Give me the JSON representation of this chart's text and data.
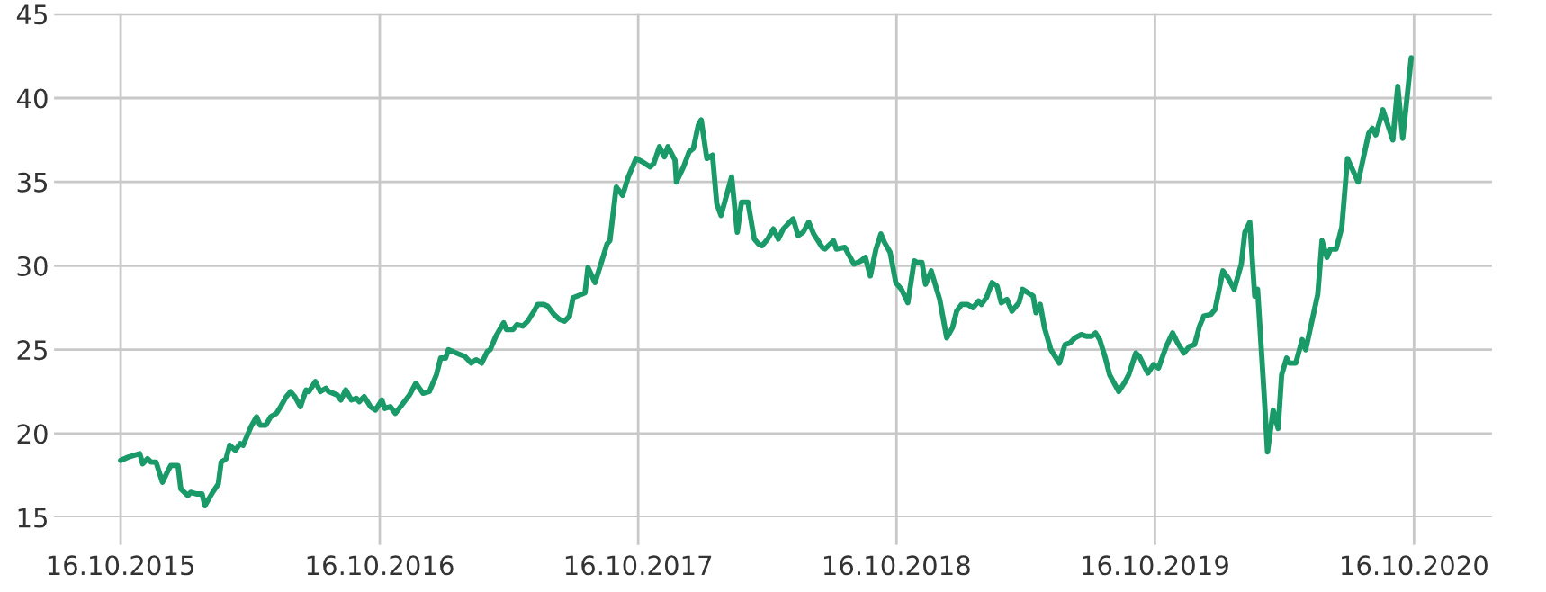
{
  "chart_data": {
    "type": "line",
    "x": [
      "2015-10-16",
      "2015-10-27",
      "2015-11-12",
      "2015-11-16",
      "2015-11-23",
      "2015-11-28",
      "2015-12-05",
      "2015-12-14",
      "2015-12-22",
      "2015-12-26",
      "2016-01-05",
      "2016-01-09",
      "2016-01-19",
      "2016-01-23",
      "2016-01-31",
      "2016-02-08",
      "2016-02-12",
      "2016-02-23",
      "2016-03-02",
      "2016-03-06",
      "2016-03-13",
      "2016-03-18",
      "2016-03-26",
      "2016-04-02",
      "2016-04-06",
      "2016-04-17",
      "2016-04-25",
      "2016-04-30",
      "2016-05-08",
      "2016-05-15",
      "2016-05-23",
      "2016-05-29",
      "2016-06-06",
      "2016-06-12",
      "2016-06-18",
      "2016-06-26",
      "2016-07-04",
      "2016-07-08",
      "2016-07-17",
      "2016-07-24",
      "2016-08-01",
      "2016-08-05",
      "2016-08-17",
      "2016-08-22",
      "2016-08-29",
      "2016-09-06",
      "2016-09-13",
      "2016-09-17",
      "2016-09-24",
      "2016-10-03",
      "2016-10-10",
      "2016-10-19",
      "2016-10-23",
      "2016-10-31",
      "2016-11-07",
      "2016-11-16",
      "2016-11-27",
      "2016-12-06",
      "2016-12-16",
      "2016-12-25",
      "2017-01-04",
      "2017-01-10",
      "2017-01-17",
      "2017-01-21",
      "2017-02-01",
      "2017-02-13",
      "2017-02-22",
      "2017-03-01",
      "2017-03-09",
      "2017-03-17",
      "2017-03-21",
      "2017-03-29",
      "2017-04-09",
      "2017-04-13",
      "2017-04-22",
      "2017-04-28",
      "2017-05-06",
      "2017-05-13",
      "2017-05-22",
      "2017-05-27",
      "2017-06-04",
      "2017-06-10",
      "2017-06-19",
      "2017-06-27",
      "2017-07-04",
      "2017-07-11",
      "2017-07-16",
      "2017-07-28",
      "2017-08-02",
      "2017-08-06",
      "2017-08-16",
      "2017-08-25",
      "2017-09-02",
      "2017-09-06",
      "2017-09-15",
      "2017-09-24",
      "2017-10-02",
      "2017-10-13",
      "2017-10-22",
      "2017-11-02",
      "2017-11-07",
      "2017-11-15",
      "2017-11-22",
      "2017-11-27",
      "2017-12-07",
      "2017-12-09",
      "2017-12-19",
      "2017-12-27",
      "2018-01-02",
      "2018-01-09",
      "2018-01-13",
      "2018-01-21",
      "2018-01-29",
      "2018-02-04",
      "2018-02-10",
      "2018-02-25",
      "2018-03-05",
      "2018-03-11",
      "2018-03-20",
      "2018-03-29",
      "2018-04-04",
      "2018-04-09",
      "2018-04-17",
      "2018-04-25",
      "2018-05-02",
      "2018-05-09",
      "2018-05-18",
      "2018-05-23",
      "2018-05-30",
      "2018-06-06",
      "2018-06-14",
      "2018-06-21",
      "2018-07-03",
      "2018-07-07",
      "2018-07-19",
      "2018-07-23",
      "2018-08-04",
      "2018-08-09",
      "2018-08-17",
      "2018-08-27",
      "2018-09-02",
      "2018-09-09",
      "2018-09-17",
      "2018-09-24",
      "2018-09-29",
      "2018-10-07",
      "2018-10-15",
      "2018-10-23",
      "2018-11-01",
      "2018-11-10",
      "2018-11-14",
      "2018-11-21",
      "2018-11-26",
      "2018-12-04",
      "2018-12-16",
      "2018-12-26",
      "2019-01-03",
      "2019-01-09",
      "2019-01-16",
      "2019-01-24",
      "2019-02-01",
      "2019-02-09",
      "2019-02-13",
      "2019-02-20",
      "2019-02-28",
      "2019-03-07",
      "2019-03-13",
      "2019-03-21",
      "2019-03-28",
      "2019-04-07",
      "2019-04-12",
      "2019-04-27",
      "2019-05-01",
      "2019-05-07",
      "2019-05-13",
      "2019-05-22",
      "2019-06-03",
      "2019-06-11",
      "2019-06-18",
      "2019-06-25",
      "2019-07-04",
      "2019-07-11",
      "2019-07-19",
      "2019-07-24",
      "2019-07-30",
      "2019-08-07",
      "2019-08-13",
      "2019-08-26",
      "2019-09-04",
      "2019-09-09",
      "2019-09-19",
      "2019-09-24",
      "2019-10-06",
      "2019-10-14",
      "2019-10-21",
      "2019-11-01",
      "2019-11-10",
      "2019-11-17",
      "2019-11-26",
      "2019-12-04",
      "2019-12-11",
      "2019-12-18",
      "2019-12-24",
      "2020-01-03",
      "2020-01-09",
      "2020-01-20",
      "2020-01-27",
      "2020-02-05",
      "2020-02-15",
      "2020-02-20",
      "2020-02-27",
      "2020-03-05",
      "2020-03-09",
      "2020-03-18",
      "2020-03-23",
      "2020-03-31",
      "2020-04-07",
      "2020-04-12",
      "2020-04-19",
      "2020-04-23",
      "2020-05-02",
      "2020-05-11",
      "2020-05-16",
      "2020-06-02",
      "2020-06-08",
      "2020-06-15",
      "2020-06-20",
      "2020-06-28",
      "2020-07-06",
      "2020-07-14",
      "2020-07-29",
      "2020-08-13",
      "2020-08-18",
      "2020-08-23",
      "2020-09-02",
      "2020-09-16",
      "2020-09-23",
      "2020-09-30",
      "2020-10-12"
    ],
    "series": [
      {
        "color": "#1a9a68",
        "values": [
          18.4,
          18.6,
          18.8,
          18.2,
          18.5,
          18.3,
          18.3,
          17.1,
          17.8,
          18.1,
          18.1,
          16.7,
          16.3,
          16.5,
          16.4,
          16.4,
          15.7,
          16.5,
          17.0,
          18.3,
          18.5,
          19.3,
          19.0,
          19.4,
          19.3,
          20.4,
          21.0,
          20.5,
          20.5,
          21.0,
          21.2,
          21.6,
          22.2,
          22.5,
          22.2,
          21.6,
          22.6,
          22.5,
          23.1,
          22.5,
          22.7,
          22.5,
          22.3,
          22.0,
          22.6,
          22.0,
          22.1,
          21.9,
          22.2,
          21.6,
          21.4,
          22.0,
          21.5,
          21.6,
          21.2,
          21.7,
          22.3,
          23.0,
          22.4,
          22.5,
          23.5,
          24.5,
          24.5,
          25.0,
          24.8,
          24.6,
          24.2,
          24.4,
          24.2,
          24.9,
          25.0,
          25.8,
          26.6,
          26.2,
          26.2,
          26.5,
          26.4,
          26.7,
          27.3,
          27.7,
          27.7,
          27.6,
          27.1,
          26.8,
          26.7,
          27.0,
          28.1,
          28.3,
          28.4,
          29.9,
          29.0,
          30.2,
          31.3,
          31.5,
          34.7,
          34.2,
          35.3,
          36.4,
          36.2,
          35.9,
          36.1,
          37.1,
          36.5,
          37.1,
          36.3,
          35.0,
          35.9,
          36.8,
          37.0,
          38.4,
          38.7,
          36.4,
          36.6,
          33.7,
          33.0,
          35.3,
          32.0,
          33.8,
          33.8,
          31.6,
          31.3,
          31.2,
          31.6,
          32.2,
          31.6,
          32.2,
          32.6,
          32.8,
          31.8,
          32.0,
          32.6,
          31.9,
          31.1,
          31.0,
          31.5,
          31.0,
          31.1,
          30.7,
          30.1,
          30.3,
          30.5,
          29.4,
          31.0,
          31.9,
          31.4,
          30.8,
          29.0,
          28.6,
          27.8,
          30.3,
          30.2,
          30.2,
          28.9,
          29.7,
          28.0,
          25.7,
          26.3,
          27.3,
          27.7,
          27.7,
          27.5,
          27.9,
          27.7,
          28.1,
          29.0,
          28.8,
          27.8,
          28.0,
          27.3,
          27.8,
          28.6,
          28.2,
          27.2,
          27.7,
          26.3,
          25.0,
          24.2,
          25.3,
          25.4,
          25.7,
          25.9,
          25.8,
          25.8,
          26.0,
          25.6,
          24.5,
          23.5,
          22.5,
          23.1,
          23.5,
          24.8,
          24.6,
          23.6,
          24.1,
          23.9,
          25.2,
          26.0,
          25.4,
          24.8,
          25.2,
          25.3,
          26.4,
          27.0,
          27.1,
          27.4,
          29.7,
          29.3,
          28.6,
          30.1,
          32.0,
          32.6,
          28.2,
          28.6,
          22.5,
          18.9,
          21.4,
          20.3,
          23.5,
          24.5,
          24.2,
          24.2,
          25.6,
          25.0,
          28.3,
          31.5,
          30.5,
          31.0,
          31.0,
          32.3,
          36.4,
          35.0,
          37.9,
          38.2,
          37.8,
          39.3,
          37.5,
          40.7,
          37.6,
          42.4
        ]
      }
    ],
    "xlim": [
      "2015-07-14",
      "2021-02-03"
    ],
    "xticks": [
      {
        "value": "2015-10-16",
        "label": "16.10.2015"
      },
      {
        "value": "2016-10-16",
        "label": "16.10.2016"
      },
      {
        "value": "2017-10-16",
        "label": "16.10.2017"
      },
      {
        "value": "2018-10-16",
        "label": "16.10.2018"
      },
      {
        "value": "2019-10-16",
        "label": "16.10.2019"
      },
      {
        "value": "2020-10-16",
        "label": "16.10.2020"
      }
    ],
    "ylim": [
      15,
      45
    ],
    "yticks": [
      15,
      20,
      25,
      30,
      35,
      40,
      45
    ],
    "grid": true,
    "marker": "none",
    "line_style": "solid"
  }
}
